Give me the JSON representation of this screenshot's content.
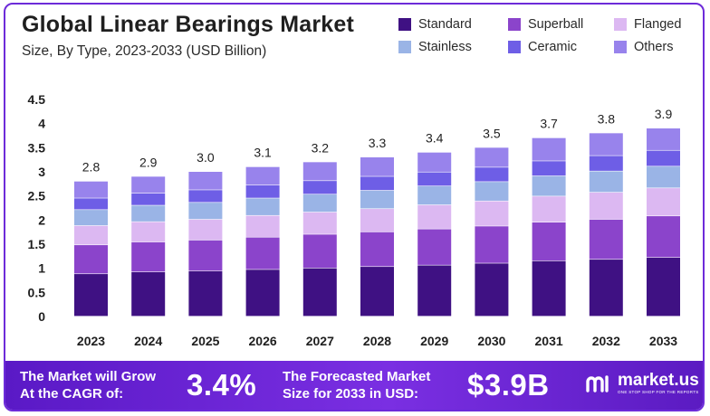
{
  "chart_data": {
    "type": "bar",
    "stacked": true,
    "title": "Global Linear Bearings Market",
    "subtitle": "Size, By Type, 2023-2033 (USD Billion)",
    "categories": [
      "2023",
      "2024",
      "2025",
      "2026",
      "2027",
      "2028",
      "2029",
      "2030",
      "2031",
      "2032",
      "2033"
    ],
    "totals": [
      "2.8",
      "2.9",
      "3.0",
      "3.1",
      "3.2",
      "3.3",
      "3.4",
      "3.5",
      "3.7",
      "3.8",
      "3.9"
    ],
    "y_ticks": [
      "0",
      "0.5",
      "1",
      "1.5",
      "2",
      "2.5",
      "3",
      "3.5",
      "4",
      "4.5"
    ],
    "ylim": [
      0,
      4.5
    ],
    "legend_position": "top-right",
    "series": [
      {
        "name": "Standard",
        "color": "#3f1183",
        "values": [
          0.88,
          0.92,
          0.94,
          0.97,
          1.0,
          1.03,
          1.06,
          1.1,
          1.15,
          1.18,
          1.22
        ]
      },
      {
        "name": "Superball",
        "color": "#8b44cb",
        "values": [
          0.6,
          0.62,
          0.64,
          0.67,
          0.7,
          0.72,
          0.75,
          0.77,
          0.8,
          0.83,
          0.86
        ]
      },
      {
        "name": "Flanged",
        "color": "#dcb8f2",
        "values": [
          0.4,
          0.42,
          0.43,
          0.45,
          0.46,
          0.48,
          0.5,
          0.52,
          0.54,
          0.56,
          0.58
        ]
      },
      {
        "name": "Stainless",
        "color": "#9ab4e6",
        "values": [
          0.33,
          0.34,
          0.35,
          0.36,
          0.37,
          0.38,
          0.39,
          0.4,
          0.42,
          0.44,
          0.45
        ]
      },
      {
        "name": "Ceramic",
        "color": "#6e5ee6",
        "values": [
          0.24,
          0.25,
          0.26,
          0.27,
          0.28,
          0.29,
          0.29,
          0.3,
          0.31,
          0.32,
          0.33
        ]
      },
      {
        "name": "Others",
        "color": "#9883ec",
        "values": [
          0.35,
          0.35,
          0.38,
          0.38,
          0.39,
          0.4,
          0.41,
          0.41,
          0.48,
          0.47,
          0.46
        ]
      }
    ]
  },
  "banner": {
    "cagr_label_1": "The Market will Grow",
    "cagr_label_2": "At the CAGR of:",
    "cagr_value": "3.4%",
    "forecast_label_1": "The Forecasted Market",
    "forecast_label_2": "Size for 2033 in USD:",
    "forecast_value": "$3.9B"
  },
  "brand": {
    "name": "market.us",
    "tagline": "ONE STOP SHOP FOR THE REPORTS"
  }
}
